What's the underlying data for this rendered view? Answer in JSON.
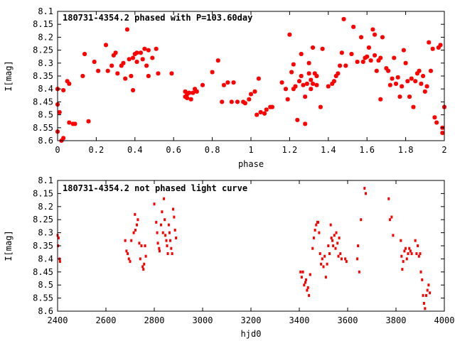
{
  "chart_data": [
    {
      "type": "scatter",
      "title": "180731-4354.2 phased with P=103.60day",
      "xlabel": "phase",
      "ylabel": "I[mag]",
      "xlim": [
        0,
        2
      ],
      "ylim": [
        8.1,
        8.6
      ],
      "y_inverted": true,
      "x_ticks": [
        0,
        0.2,
        0.4,
        0.6,
        0.8,
        1,
        1.2,
        1.4,
        1.6,
        1.8,
        2
      ],
      "x_tick_labels": [
        "0",
        "0.2",
        "0.4",
        "0.6",
        "0.8",
        "1",
        "1.2",
        "1.4",
        "1.6",
        "1.8",
        "2"
      ],
      "y_ticks": [
        8.1,
        8.15,
        8.2,
        8.25,
        8.3,
        8.35,
        8.4,
        8.45,
        8.5,
        8.55,
        8.6
      ],
      "y_tick_labels": [
        "8.1",
        "8.15",
        "8.2",
        "8.25",
        "8.3",
        "8.35",
        "8.4",
        "8.45",
        "8.5",
        "8.55",
        "8.6"
      ],
      "grid": false,
      "marker_color": "#ff0000",
      "marker": "star",
      "points": [
        [
          0.0,
          8.4
        ],
        [
          0.0,
          8.46
        ],
        [
          0.01,
          8.49
        ],
        [
          0.0,
          8.565
        ],
        [
          0.02,
          8.6
        ],
        [
          0.03,
          8.405
        ],
        [
          0.03,
          8.59
        ],
        [
          0.05,
          8.37
        ],
        [
          0.06,
          8.38
        ],
        [
          0.06,
          8.53
        ],
        [
          0.08,
          8.535
        ],
        [
          0.09,
          8.535
        ],
        [
          0.13,
          8.35
        ],
        [
          0.14,
          8.265
        ],
        [
          0.16,
          8.525
        ],
        [
          0.19,
          8.295
        ],
        [
          0.21,
          8.33
        ],
        [
          0.25,
          8.23
        ],
        [
          0.26,
          8.33
        ],
        [
          0.28,
          8.31
        ],
        [
          0.29,
          8.27
        ],
        [
          0.3,
          8.26
        ],
        [
          0.31,
          8.34
        ],
        [
          0.33,
          8.31
        ],
        [
          0.34,
          8.3
        ],
        [
          0.35,
          8.36
        ],
        [
          0.36,
          8.17
        ],
        [
          0.37,
          8.285
        ],
        [
          0.38,
          8.35
        ],
        [
          0.39,
          8.405
        ],
        [
          0.39,
          8.28
        ],
        [
          0.4,
          8.265
        ],
        [
          0.41,
          8.26
        ],
        [
          0.41,
          8.295
        ],
        [
          0.43,
          8.26
        ],
        [
          0.44,
          8.285
        ],
        [
          0.45,
          8.245
        ],
        [
          0.46,
          8.31
        ],
        [
          0.47,
          8.25
        ],
        [
          0.47,
          8.35
        ],
        [
          0.49,
          8.28
        ],
        [
          0.51,
          8.245
        ],
        [
          0.52,
          8.34
        ],
        [
          0.59,
          8.34
        ],
        [
          0.66,
          8.43
        ],
        [
          0.66,
          8.41
        ],
        [
          0.67,
          8.435
        ],
        [
          0.67,
          8.42
        ],
        [
          0.68,
          8.415
        ],
        [
          0.69,
          8.44
        ],
        [
          0.7,
          8.415
        ],
        [
          0.71,
          8.4
        ],
        [
          0.72,
          8.41
        ],
        [
          0.75,
          8.385
        ],
        [
          0.8,
          8.335
        ],
        [
          0.83,
          8.29
        ],
        [
          0.85,
          8.45
        ],
        [
          0.86,
          8.385
        ],
        [
          0.88,
          8.375
        ],
        [
          0.9,
          8.45
        ],
        [
          0.91,
          8.375
        ],
        [
          0.93,
          8.45
        ],
        [
          0.96,
          8.45
        ],
        [
          0.97,
          8.455
        ],
        [
          0.99,
          8.44
        ],
        [
          1.0,
          8.42
        ],
        [
          1.02,
          8.41
        ],
        [
          1.03,
          8.5
        ],
        [
          1.04,
          8.36
        ],
        [
          1.05,
          8.49
        ],
        [
          1.07,
          8.495
        ],
        [
          1.08,
          8.48
        ],
        [
          1.1,
          8.47
        ],
        [
          1.11,
          8.47
        ],
        [
          1.16,
          8.375
        ],
        [
          1.18,
          8.4
        ],
        [
          1.19,
          8.44
        ],
        [
          1.2,
          8.19
        ],
        [
          1.21,
          8.335
        ],
        [
          1.22,
          8.4
        ],
        [
          1.22,
          8.305
        ],
        [
          1.23,
          8.39
        ],
        [
          1.24,
          8.52
        ],
        [
          1.25,
          8.37
        ],
        [
          1.26,
          8.35
        ],
        [
          1.26,
          8.265
        ],
        [
          1.27,
          8.385
        ],
        [
          1.28,
          8.535
        ],
        [
          1.28,
          8.43
        ],
        [
          1.29,
          8.38
        ],
        [
          1.3,
          8.34
        ],
        [
          1.3,
          8.3
        ],
        [
          1.31,
          8.365
        ],
        [
          1.31,
          8.4
        ],
        [
          1.32,
          8.24
        ],
        [
          1.32,
          8.38
        ],
        [
          1.33,
          8.34
        ],
        [
          1.34,
          8.385
        ],
        [
          1.34,
          8.35
        ],
        [
          1.36,
          8.47
        ],
        [
          1.37,
          8.245
        ],
        [
          1.4,
          8.39
        ],
        [
          1.42,
          8.38
        ],
        [
          1.43,
          8.37
        ],
        [
          1.44,
          8.35
        ],
        [
          1.45,
          8.34
        ],
        [
          1.46,
          8.31
        ],
        [
          1.47,
          8.26
        ],
        [
          1.48,
          8.13
        ],
        [
          1.49,
          8.31
        ],
        [
          1.52,
          8.265
        ],
        [
          1.53,
          8.16
        ],
        [
          1.55,
          8.295
        ],
        [
          1.57,
          8.2
        ],
        [
          1.58,
          8.295
        ],
        [
          1.59,
          8.28
        ],
        [
          1.6,
          8.275
        ],
        [
          1.61,
          8.24
        ],
        [
          1.62,
          8.29
        ],
        [
          1.63,
          8.17
        ],
        [
          1.64,
          8.19
        ],
        [
          1.64,
          8.27
        ],
        [
          1.65,
          8.33
        ],
        [
          1.66,
          8.29
        ],
        [
          1.67,
          8.44
        ],
        [
          1.67,
          8.28
        ],
        [
          1.68,
          8.2
        ],
        [
          1.7,
          8.32
        ],
        [
          1.71,
          8.33
        ],
        [
          1.72,
          8.385
        ],
        [
          1.73,
          8.36
        ],
        [
          1.74,
          8.28
        ],
        [
          1.75,
          8.38
        ],
        [
          1.76,
          8.355
        ],
        [
          1.77,
          8.43
        ],
        [
          1.78,
          8.39
        ],
        [
          1.79,
          8.25
        ],
        [
          1.8,
          8.3
        ],
        [
          1.81,
          8.37
        ],
        [
          1.82,
          8.43
        ],
        [
          1.83,
          8.36
        ],
        [
          1.84,
          8.47
        ],
        [
          1.85,
          8.37
        ],
        [
          1.86,
          8.34
        ],
        [
          1.87,
          8.33
        ],
        [
          1.88,
          8.38
        ],
        [
          1.89,
          8.35
        ],
        [
          1.9,
          8.41
        ],
        [
          1.91,
          8.39
        ],
        [
          1.92,
          8.22
        ],
        [
          1.93,
          8.33
        ],
        [
          1.94,
          8.245
        ],
        [
          1.95,
          8.51
        ],
        [
          1.96,
          8.53
        ],
        [
          1.97,
          8.24
        ],
        [
          1.98,
          8.23
        ],
        [
          1.99,
          8.57
        ],
        [
          1.99,
          8.55
        ],
        [
          2.0,
          8.47
        ]
      ]
    },
    {
      "type": "scatter",
      "title": "180731-4354.2 not phased light curve",
      "xlabel": "hjd0",
      "ylabel": "I[mag]",
      "xlim": [
        2400,
        4000
      ],
      "ylim": [
        8.1,
        8.6
      ],
      "y_inverted": true,
      "x_ticks": [
        2400,
        2600,
        2800,
        3000,
        3200,
        3400,
        3600,
        3800,
        4000
      ],
      "x_tick_labels": [
        "2400",
        "2600",
        "2800",
        "3000",
        "3200",
        "3400",
        "3600",
        "3800",
        "4000"
      ],
      "y_ticks": [
        8.1,
        8.15,
        8.2,
        8.25,
        8.3,
        8.35,
        8.4,
        8.45,
        8.5,
        8.55,
        8.6
      ],
      "y_tick_labels": [
        "8.1",
        "8.15",
        "8.2",
        "8.25",
        "8.3",
        "8.35",
        "8.4",
        "8.45",
        "8.5",
        "8.55",
        "8.6"
      ],
      "grid": false,
      "marker_color": "#ff0000",
      "marker": "dot",
      "points": [
        [
          2400,
          8.31
        ],
        [
          2402,
          8.35
        ],
        [
          2404,
          8.32
        ],
        [
          2408,
          8.4
        ],
        [
          2410,
          8.41
        ],
        [
          2680,
          8.33
        ],
        [
          2685,
          8.37
        ],
        [
          2690,
          8.38
        ],
        [
          2695,
          8.4
        ],
        [
          2700,
          8.41
        ],
        [
          2705,
          8.33
        ],
        [
          2715,
          8.3
        ],
        [
          2720,
          8.23
        ],
        [
          2722,
          8.29
        ],
        [
          2728,
          8.27
        ],
        [
          2732,
          8.25
        ],
        [
          2738,
          8.34
        ],
        [
          2742,
          8.4
        ],
        [
          2747,
          8.35
        ],
        [
          2752,
          8.43
        ],
        [
          2755,
          8.44
        ],
        [
          2758,
          8.42
        ],
        [
          2762,
          8.35
        ],
        [
          2765,
          8.39
        ],
        [
          2800,
          8.19
        ],
        [
          2808,
          8.26
        ],
        [
          2812,
          8.3
        ],
        [
          2815,
          8.34
        ],
        [
          2820,
          8.36
        ],
        [
          2822,
          8.37
        ],
        [
          2828,
          8.27
        ],
        [
          2832,
          8.22
        ],
        [
          2836,
          8.3
        ],
        [
          2840,
          8.17
        ],
        [
          2843,
          8.25
        ],
        [
          2846,
          8.31
        ],
        [
          2850,
          8.33
        ],
        [
          2853,
          8.35
        ],
        [
          2856,
          8.38
        ],
        [
          2860,
          8.27
        ],
        [
          2863,
          8.3
        ],
        [
          2866,
          8.33
        ],
        [
          2870,
          8.36
        ],
        [
          2874,
          8.38
        ],
        [
          2878,
          8.21
        ],
        [
          2882,
          8.24
        ],
        [
          2886,
          8.29
        ],
        [
          2890,
          8.32
        ],
        [
          3405,
          8.45
        ],
        [
          3410,
          8.47
        ],
        [
          3415,
          8.45
        ],
        [
          3420,
          8.5
        ],
        [
          3425,
          8.49
        ],
        [
          3428,
          8.48
        ],
        [
          3432,
          8.52
        ],
        [
          3436,
          8.51
        ],
        [
          3440,
          8.54
        ],
        [
          3445,
          8.46
        ],
        [
          3455,
          8.36
        ],
        [
          3460,
          8.32
        ],
        [
          3465,
          8.29
        ],
        [
          3470,
          8.27
        ],
        [
          3475,
          8.26
        ],
        [
          3478,
          8.26
        ],
        [
          3482,
          8.3
        ],
        [
          3486,
          8.38
        ],
        [
          3490,
          8.42
        ],
        [
          3495,
          8.4
        ],
        [
          3500,
          8.43
        ],
        [
          3505,
          8.39
        ],
        [
          3510,
          8.47
        ],
        [
          3515,
          8.42
        ],
        [
          3520,
          8.35
        ],
        [
          3525,
          8.38
        ],
        [
          3530,
          8.27
        ],
        [
          3533,
          8.32
        ],
        [
          3537,
          8.33
        ],
        [
          3540,
          8.35
        ],
        [
          3545,
          8.31
        ],
        [
          3550,
          8.36
        ],
        [
          3553,
          8.3
        ],
        [
          3558,
          8.34
        ],
        [
          3562,
          8.39
        ],
        [
          3565,
          8.32
        ],
        [
          3570,
          8.38
        ],
        [
          3575,
          8.4
        ],
        [
          3590,
          8.4
        ],
        [
          3595,
          8.41
        ],
        [
          3640,
          8.4
        ],
        [
          3643,
          8.35
        ],
        [
          3648,
          8.45
        ],
        [
          3655,
          8.25
        ],
        [
          3670,
          8.13
        ],
        [
          3675,
          8.15
        ],
        [
          3770,
          8.17
        ],
        [
          3775,
          8.25
        ],
        [
          3782,
          8.24
        ],
        [
          3788,
          8.31
        ],
        [
          3820,
          8.33
        ],
        [
          3823,
          8.39
        ],
        [
          3826,
          8.44
        ],
        [
          3830,
          8.41
        ],
        [
          3835,
          8.37
        ],
        [
          3840,
          8.36
        ],
        [
          3845,
          8.4
        ],
        [
          3850,
          8.38
        ],
        [
          3855,
          8.36
        ],
        [
          3860,
          8.37
        ],
        [
          3865,
          8.38
        ],
        [
          3880,
          8.33
        ],
        [
          3885,
          8.38
        ],
        [
          3890,
          8.35
        ],
        [
          3895,
          8.39
        ],
        [
          3900,
          8.38
        ],
        [
          3903,
          8.45
        ],
        [
          3908,
          8.48
        ],
        [
          3912,
          8.54
        ],
        [
          3916,
          8.57
        ],
        [
          3920,
          8.59
        ],
        [
          3925,
          8.54
        ],
        [
          3930,
          8.52
        ],
        [
          3935,
          8.5
        ],
        [
          3940,
          8.53
        ]
      ]
    }
  ]
}
